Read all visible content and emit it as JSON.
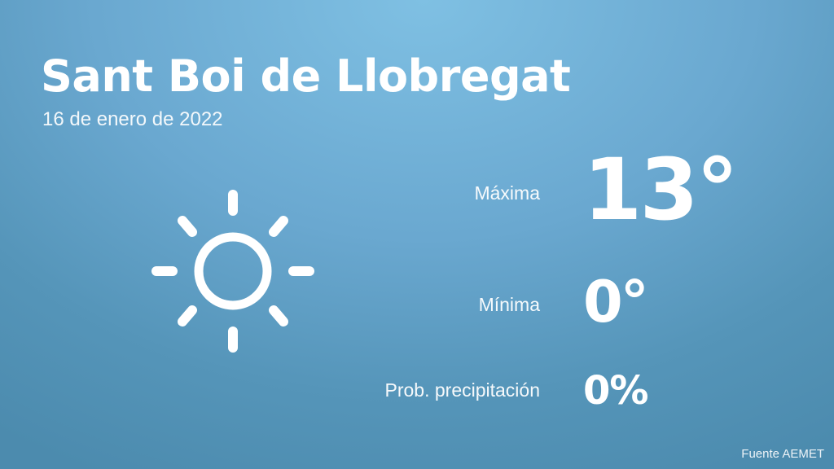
{
  "location": "Sant Boi de Llobregat",
  "date": "16 de enero de 2022",
  "weather_icon": "sun-icon",
  "max": {
    "label": "Máxima",
    "value": "13°"
  },
  "min": {
    "label": "Mínima",
    "value": "0°"
  },
  "precipitation": {
    "label": "Prob. precipitación",
    "value": "0%"
  },
  "source": "Fuente AEMET",
  "colors": {
    "background_top": "#7fc0e3",
    "background_bottom": "#4c8bae",
    "text": "#ffffff"
  }
}
